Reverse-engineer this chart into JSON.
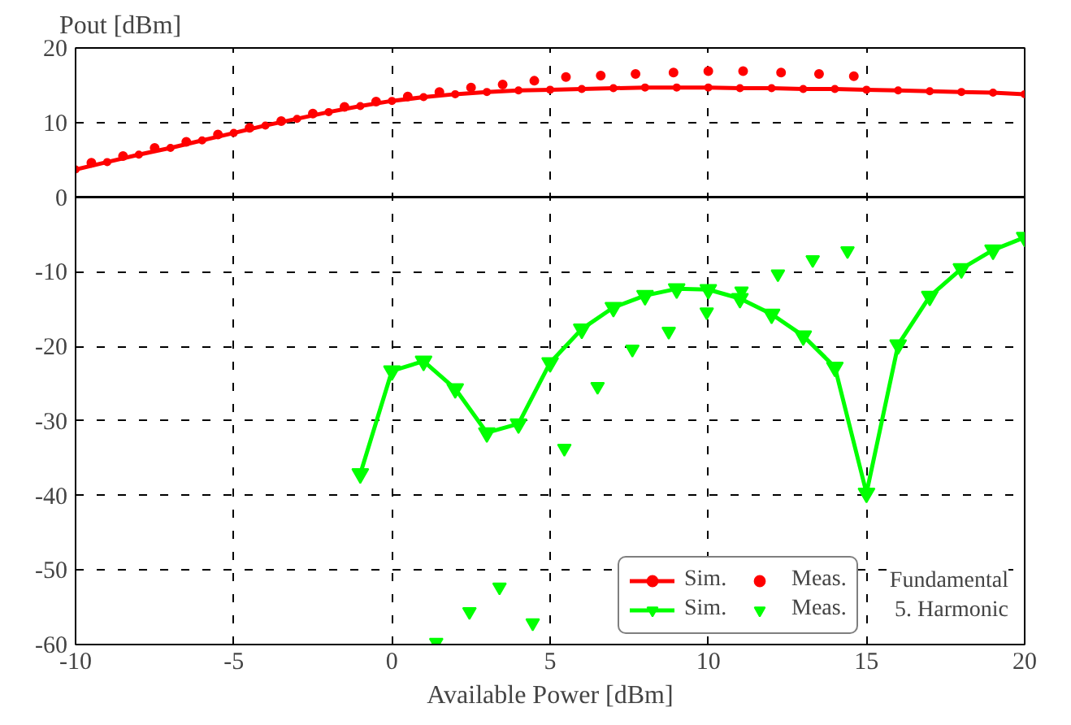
{
  "chart_data": {
    "type": "line",
    "xlabel": "Available Power [dBm]",
    "ylabel": "Pout [dBm]",
    "xlim": [
      -10,
      20
    ],
    "xticks": [
      -10,
      -5,
      0,
      5,
      10,
      15,
      20
    ],
    "ylim": [
      -60,
      20
    ],
    "yticks": [
      -60,
      -50,
      -40,
      -30,
      -20,
      -10,
      0,
      10,
      20
    ],
    "grid": true,
    "legend": "bottom right",
    "annotations": [
      "Fundamental",
      "5. Harmonic"
    ],
    "ref_lines": [
      {
        "axis": "y",
        "value": 0,
        "color": "#000000",
        "line_style": "solid"
      }
    ],
    "series": [
      {
        "name": "Sim.",
        "marker": "circle",
        "color": "#ff0000",
        "x": [
          -10,
          -9,
          -8,
          -7,
          -6,
          -5,
          -4,
          -3,
          -2,
          -1,
          0,
          1,
          2,
          3,
          4,
          5,
          6,
          7,
          8,
          9,
          10,
          11,
          12,
          13,
          14,
          15,
          16,
          17,
          18,
          19,
          20
        ],
        "values": [
          3.7,
          4.7,
          5.7,
          6.6,
          7.6,
          8.6,
          9.6,
          10.5,
          11.4,
          12.2,
          12.9,
          13.4,
          13.8,
          14.1,
          14.3,
          14.4,
          14.5,
          14.6,
          14.7,
          14.7,
          14.7,
          14.6,
          14.6,
          14.5,
          14.5,
          14.4,
          14.3,
          14.2,
          14.1,
          14.0,
          13.8
        ]
      },
      {
        "name": "Meas.",
        "type": "scatter",
        "marker": "circle",
        "color": "#ff0000",
        "x": [
          -9.5,
          -8.5,
          -7.5,
          -6.5,
          -5.5,
          -4.5,
          -3.5,
          -2.5,
          -1.5,
          -0.5,
          0.5,
          1.5,
          2.5,
          3.5,
          4.5,
          5.5,
          6.6,
          7.7,
          8.9,
          10,
          11.1,
          12.3,
          13.5,
          14.6
        ],
        "values": [
          4.6,
          5.5,
          6.6,
          7.4,
          8.4,
          9.3,
          10.2,
          11.2,
          12.1,
          12.8,
          13.5,
          14.1,
          14.7,
          15.1,
          15.6,
          16.1,
          16.3,
          16.5,
          16.7,
          16.9,
          16.9,
          16.7,
          16.5,
          16.2
        ]
      },
      {
        "name": "Sim.",
        "marker": "triangle",
        "color": "#00ff00",
        "x": [
          -1,
          0,
          1,
          2,
          3,
          4,
          5,
          6,
          7,
          8,
          9,
          10,
          11,
          12,
          13,
          14,
          15,
          16,
          17,
          18,
          19,
          20
        ],
        "values": [
          -37.1,
          -23.3,
          -22.0,
          -25.7,
          -31.6,
          -30.4,
          -22.2,
          -17.7,
          -14.8,
          -13.2,
          -12.3,
          -12.4,
          -13.6,
          -15.7,
          -18.6,
          -22.8,
          -39.7,
          -19.8,
          -13.3,
          -9.6,
          -7.1,
          -5.4
        ]
      },
      {
        "name": "Meas.",
        "type": "scatter",
        "marker": "triangle",
        "color": "#00ff00",
        "x": [
          1.4,
          2.45,
          3.4,
          4.45,
          5.45,
          6.5,
          7.6,
          8.75,
          9.95,
          11.05,
          12.2,
          13.3,
          14.4
        ],
        "values": [
          -59.7,
          -55.6,
          -52.3,
          -57.1,
          -33.7,
          -25.4,
          -20.4,
          -18.0,
          -15.4,
          -12.6,
          -10.3,
          -8.4,
          -7.2
        ]
      }
    ]
  }
}
